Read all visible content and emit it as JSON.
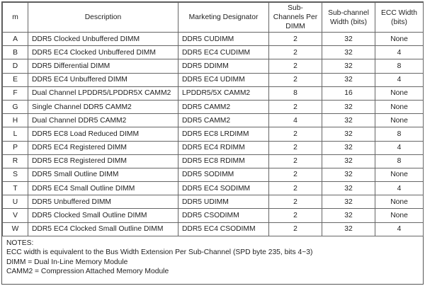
{
  "table": {
    "header": [
      "m",
      "Description",
      "Marketing Designator",
      "Sub-Channels Per DIMM",
      "Sub-channel Width (bits)",
      "ECC Width (bits)"
    ],
    "rows": [
      [
        "A",
        "DDR5 Clocked Unbuffered DIMM",
        "DDR5 CUDIMM",
        2,
        32,
        "None"
      ],
      [
        "B",
        "DDR5 EC4 Clocked Unbuffered DIMM",
        "DDR5 EC4 CUDIMM",
        2,
        32,
        4
      ],
      [
        "D",
        "DDR5 Differential DIMM",
        "DDR5 DDIMM",
        2,
        32,
        8
      ],
      [
        "E",
        "DDR5 EC4 Unbuffered DIMM",
        "DDR5 EC4 UDIMM",
        2,
        32,
        4
      ],
      [
        "F",
        "Dual Channel LPDDR5/LPDDR5X CAMM2",
        "LPDDR5/5X CAMM2",
        8,
        16,
        "None"
      ],
      [
        "G",
        "Single Channel DDR5 CAMM2",
        "DDR5 CAMM2",
        2,
        32,
        "None"
      ],
      [
        "H",
        "Dual Channel DDR5 CAMM2",
        "DDR5 CAMM2",
        4,
        32,
        "None"
      ],
      [
        "L",
        "DDR5 EC8 Load Reduced DIMM",
        "DDR5 EC8 LRDIMM",
        2,
        32,
        8
      ],
      [
        "P",
        "DDR5 EC4 Registered DIMM",
        "DDR5 EC4 RDIMM",
        2,
        32,
        4
      ],
      [
        "R",
        "DDR5 EC8 Registered DIMM",
        "DDR5 EC8 RDIMM",
        2,
        32,
        8
      ],
      [
        "S",
        "DDR5 Small Outline DIMM",
        "DDR5 SODIMM",
        2,
        32,
        "None"
      ],
      [
        "T",
        "DDR5 EC4 Small Outline DIMM",
        "DDR5 EC4 SODIMM",
        2,
        32,
        4
      ],
      [
        "U",
        "DDR5 Unbuffered DIMM",
        "DDR5 UDIMM",
        2,
        32,
        "None"
      ],
      [
        "V",
        "DDR5 Clocked Small Outline DIMM",
        "DDR5 CSODIMM",
        2,
        32,
        "None"
      ],
      [
        "W",
        "DDR5 EC4 Clocked Small Outline DIMM",
        "DDR5 EC4 CSODIMM",
        2,
        32,
        4
      ]
    ]
  },
  "notes": {
    "title": "NOTES:",
    "lines": [
      "ECC width is equivalent to the Bus Width Extension Per Sub-Channel (SPD byte 235, bits 4~3)",
      "DIMM = Dual In-Line Memory Module",
      "CAMM2 = Compression Attached Memory Module"
    ]
  }
}
